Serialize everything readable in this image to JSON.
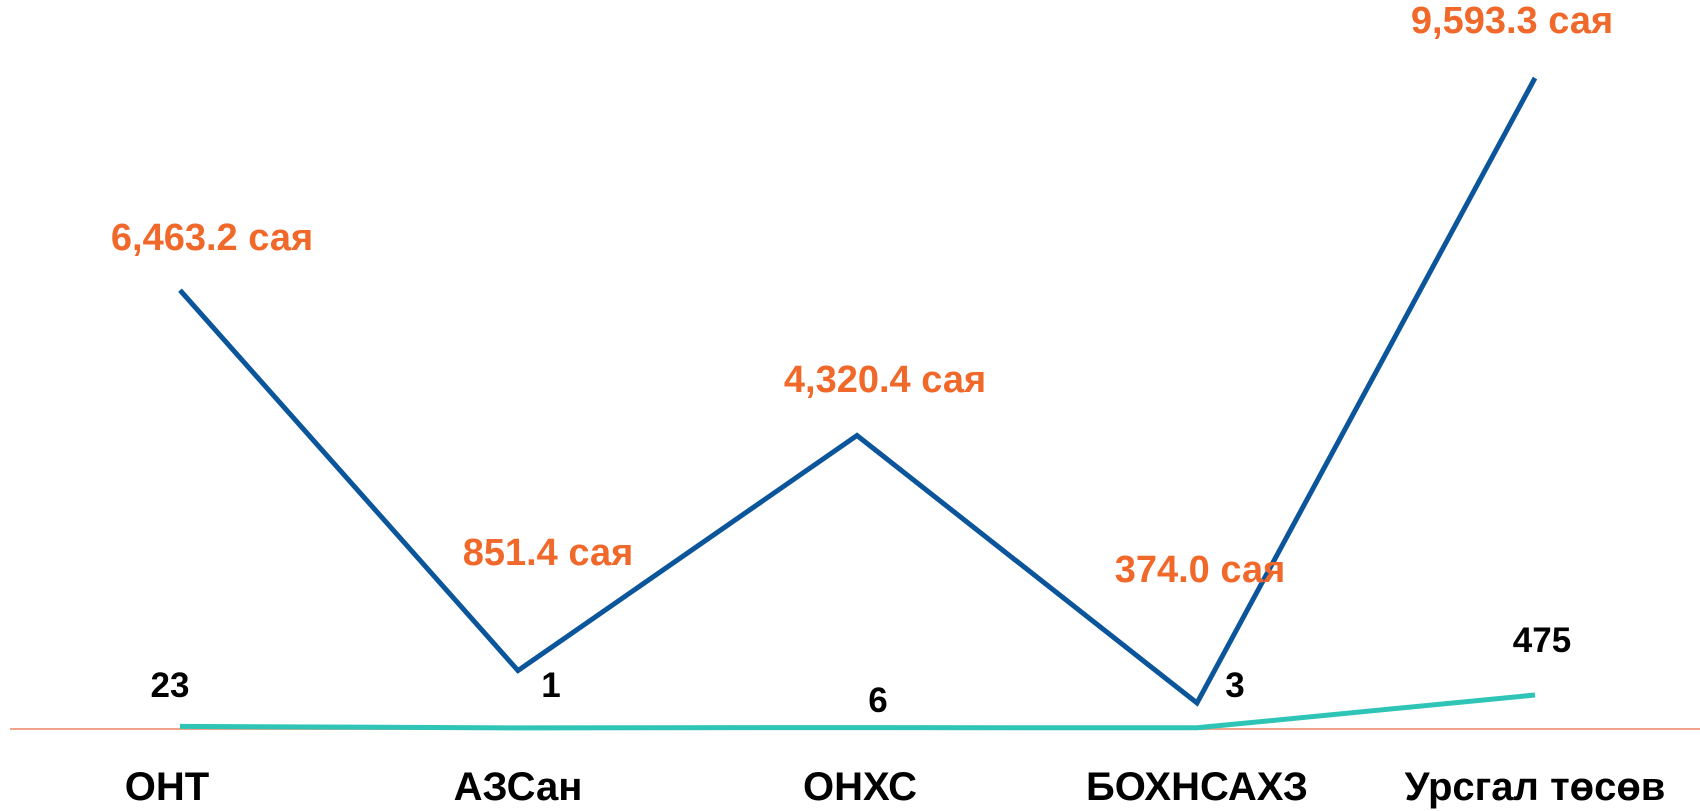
{
  "chart_data": {
    "type": "line",
    "categories": [
      "ОНТ",
      "АЗСан",
      "ОНХС",
      "БОХНСАХЗ",
      "Урсгал төсөв"
    ],
    "series": [
      {
        "values": [
          6463.2,
          851.4,
          4320.4,
          374.0,
          9593.3
        ],
        "labels": [
          "6,463.2 сая",
          "851.4 сая",
          "4,320.4 сая",
          "374.0 сая",
          "9,593.3 сая"
        ],
        "color": "#0b559b"
      },
      {
        "values": [
          23,
          1,
          6,
          3,
          475
        ],
        "labels": [
          "23",
          "1",
          "6",
          "3",
          "475"
        ],
        "color": "#2ec4b6"
      }
    ],
    "label_colors": {
      "amount": "#f0682a",
      "count": "#000000"
    },
    "baseline_color": "#f0a58a",
    "grid": false,
    "legend": "none"
  }
}
